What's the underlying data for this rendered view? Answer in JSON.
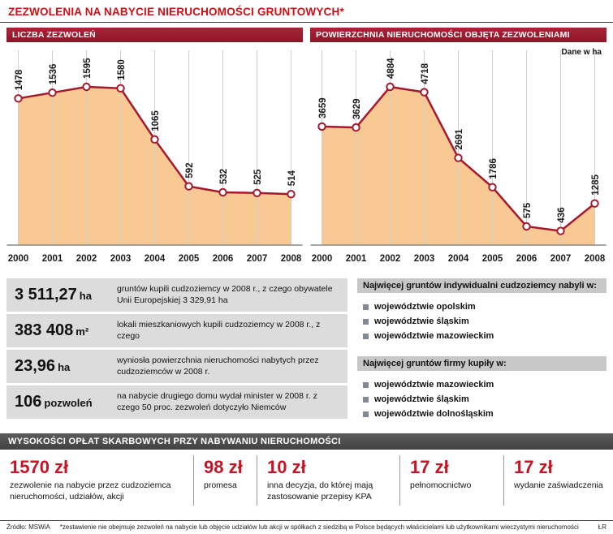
{
  "title": "ZEZWOLENIA NA NABYCIE NIERUCHOMOŚCI GRUNTOWYCH*",
  "colors": {
    "title_red": "#cc1016",
    "chart_header_bg": "#9c1a2d",
    "area_fill": "#f8c993",
    "line": "#a5182e",
    "gridline": "#cfcfcf",
    "baseline": "#8a8a8a",
    "stat_bg": "#dcdcdc",
    "list_header_bg": "#c7c7c7",
    "bullet": "#7f8a95",
    "bottom_bar_bg": "#4d4d4d",
    "amount_red": "#c41425"
  },
  "chart_data": [
    {
      "type": "area",
      "title": "LICZBA ZEZWOLEŃ",
      "x": [
        2000,
        2001,
        2002,
        2003,
        2004,
        2005,
        2006,
        2007,
        2008
      ],
      "values": [
        1478,
        1536,
        1595,
        1580,
        1065,
        592,
        532,
        525,
        514
      ],
      "xlabel": "",
      "ylabel": "",
      "ylim": [
        0,
        1650
      ],
      "grid": true,
      "legend": "none"
    },
    {
      "type": "area",
      "title": "POWIERZCHNIA NIERUCHOMOŚCI OBJĘTA ZEZWOLENIAMI",
      "note": "Dane w ha",
      "x": [
        2000,
        2001,
        2002,
        2003,
        2004,
        2005,
        2006,
        2007,
        2008
      ],
      "values": [
        3659,
        3629,
        4884,
        4718,
        2691,
        1786,
        575,
        436,
        1285
      ],
      "xlabel": "",
      "ylabel": "",
      "ylim": [
        0,
        5000
      ],
      "grid": true,
      "legend": "none"
    }
  ],
  "stats": [
    {
      "value": "3 511,27",
      "unit": "ha",
      "desc": "gruntów kupili cudzoziemcy w 2008 r., z czego obywatele Unii Europejskiej 3 329,91 ha"
    },
    {
      "value": "383 408",
      "unit": "m²",
      "desc": "lokali mieszkaniowych kupili cudzoziemcy w 2008 r., z czego"
    },
    {
      "value": "23,96",
      "unit": "ha",
      "desc": "wyniosła powierzchnia nieruchomości nabytych przez  cudzoziemców w 2008 r."
    },
    {
      "value": "106",
      "unit": "pozwoleń",
      "desc": "na nabycie drugiego domu wydał minister w 2008 r. z czego 50 proc. zezwoleń dotyczyło Niemców"
    }
  ],
  "lists": [
    {
      "header": "Najwięcej gruntów indywidualni cudzoziemcy nabyli w:",
      "items": [
        "województwie opolskim",
        "województwie śląskim",
        "województwie mazowieckim"
      ]
    },
    {
      "header": "Najwięcej gruntów firmy kupiły w:",
      "items": [
        "województwie mazowieckim",
        "województwie śląskim",
        "województwie dolnośląskim"
      ]
    }
  ],
  "fees_header": "WYSOKOŚCI OPŁAT SKARBOWYCH PRZY NABYWANIU NIERUCHOMOŚCI",
  "fees": [
    {
      "amount": "1570 zł",
      "desc": "zezwolenie na nabycie przez cudzoziemca nieruchomości, udziałów,  akcji"
    },
    {
      "amount": "98 zł",
      "desc": "promesa"
    },
    {
      "amount": "10 zł",
      "desc": "inna decyzja, do której mają zastosowanie przepisy KPA"
    },
    {
      "amount": "17 zł",
      "desc": "pełnomocnictwo"
    },
    {
      "amount": "17 zł",
      "desc": "wydanie zaświadczenia"
    }
  ],
  "footer": {
    "source": "Źródło: MSWiA",
    "note": "*zestawienie nie obejmuje zezwoleń na nabycie lub objęcie udziałów lub akcji w spółkach z siedzibą w Polsce będących właścicielami lub użytkownikami wieczystymi nieruchomości",
    "initials": "ŁR"
  }
}
